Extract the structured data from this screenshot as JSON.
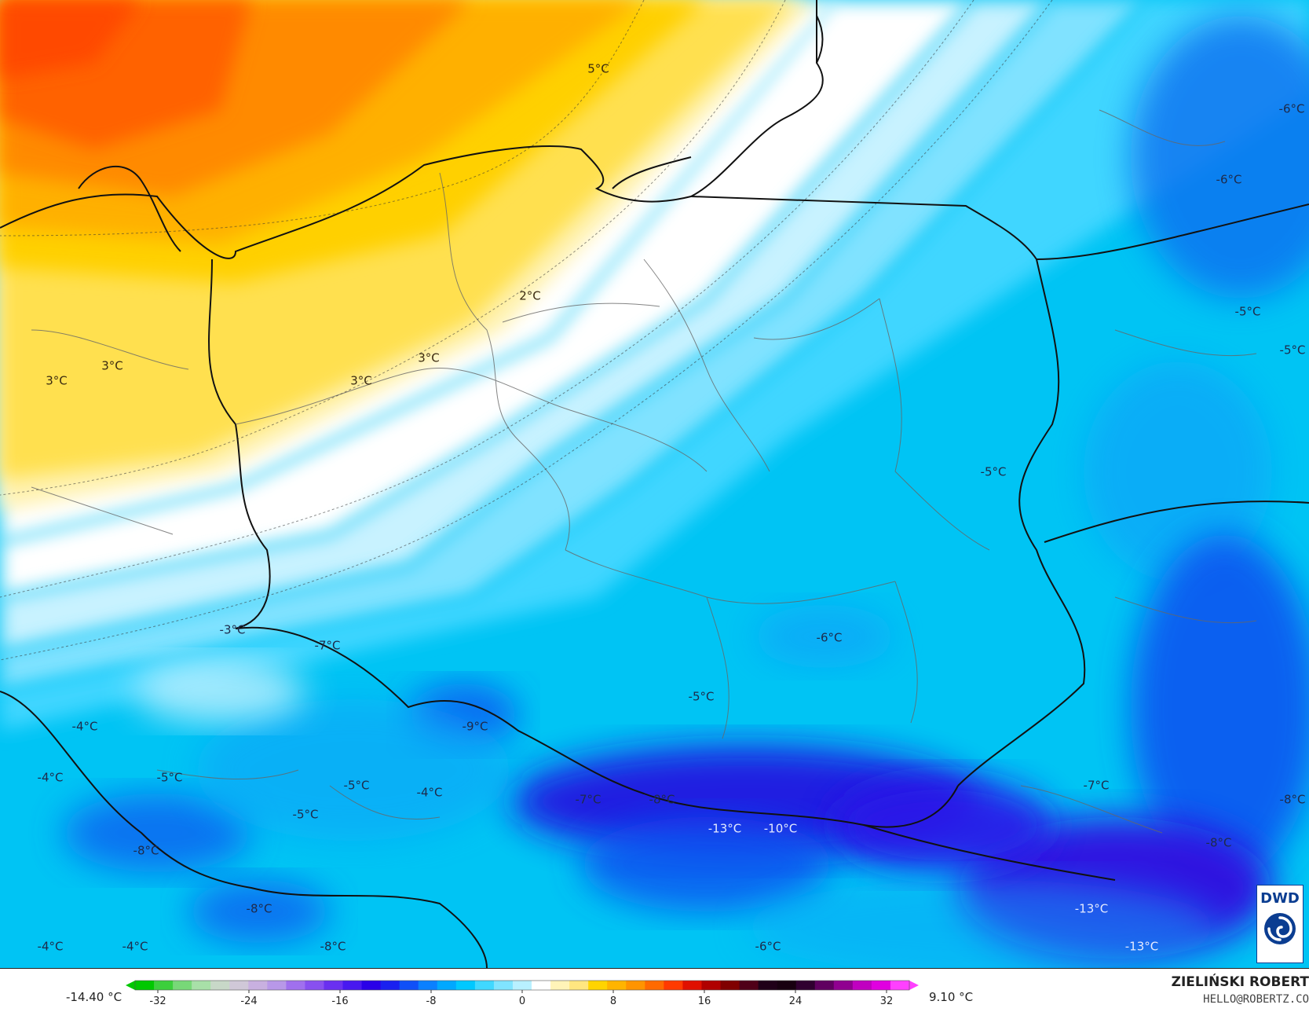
{
  "map": {
    "temperature_labels": [
      {
        "text": "5°C",
        "lon_lat_hint": "baltic-north",
        "tone": "warm"
      },
      {
        "text": "2°C",
        "tone": "warm"
      },
      {
        "text": "3°C",
        "tone": "warm"
      },
      {
        "text": "3°C",
        "tone": "warm"
      },
      {
        "text": "3°C",
        "tone": "warm"
      },
      {
        "text": "3°C",
        "tone": "warm"
      },
      {
        "text": "-6°C",
        "tone": "cool"
      },
      {
        "text": "-6°C",
        "tone": "cool"
      },
      {
        "text": "-5°C",
        "tone": "cool"
      },
      {
        "text": "-5°C",
        "tone": "cool"
      },
      {
        "text": "-5°C",
        "tone": "cool"
      },
      {
        "text": "-6°C",
        "tone": "cool"
      },
      {
        "text": "-3°C",
        "tone": "cool"
      },
      {
        "text": "-7°C",
        "tone": "cool"
      },
      {
        "text": "-5°C",
        "tone": "cool"
      },
      {
        "text": "-4°C",
        "tone": "cool"
      },
      {
        "text": "-9°C",
        "tone": "cool"
      },
      {
        "text": "-4°C",
        "tone": "cool"
      },
      {
        "text": "-5°C",
        "tone": "cool"
      },
      {
        "text": "-5°C",
        "tone": "cool"
      },
      {
        "text": "-4°C",
        "tone": "cool"
      },
      {
        "text": "-5°C",
        "tone": "cool"
      },
      {
        "text": "-7°C",
        "tone": "cool"
      },
      {
        "text": "-8°C",
        "tone": "cool"
      },
      {
        "text": "-13°C",
        "tone": "cold"
      },
      {
        "text": "-10°C",
        "tone": "cold"
      },
      {
        "text": "-7°C",
        "tone": "cool"
      },
      {
        "text": "-8°C",
        "tone": "cool"
      },
      {
        "text": "-8°C",
        "tone": "cool"
      },
      {
        "text": "-8°C",
        "tone": "cool"
      },
      {
        "text": "-8°C",
        "tone": "cool"
      },
      {
        "text": "-4°C",
        "tone": "cool"
      },
      {
        "text": "-4°C",
        "tone": "cool"
      },
      {
        "text": "-8°C",
        "tone": "cool"
      },
      {
        "text": "-6°C",
        "tone": "cool"
      },
      {
        "text": "-13°C",
        "tone": "cold"
      },
      {
        "text": "-13°C",
        "tone": "cold"
      }
    ]
  },
  "legend": {
    "min_value": "-14.40 °C",
    "max_value": "9.10 °C",
    "ticks": [
      "-32",
      "-24",
      "-16",
      "-8",
      "0",
      "8",
      "16",
      "24",
      "32"
    ],
    "tick_values": [
      -32,
      -24,
      -16,
      -8,
      0,
      8,
      16,
      24,
      32
    ],
    "range": [
      -34,
      34
    ],
    "colors": [
      "#00c800",
      "#3ccf3c",
      "#78d878",
      "#a8e0a8",
      "#c8d8c8",
      "#d0c8d8",
      "#c8b0e0",
      "#b898e8",
      "#a070ee",
      "#8850f0",
      "#6a30f0",
      "#4818f0",
      "#2a00e8",
      "#1a20f0",
      "#1050f8",
      "#0a80ff",
      "#00a8ff",
      "#00c8ff",
      "#40d8ff",
      "#80e4ff",
      "#b8f0ff",
      "#ffffff",
      "#fff4b8",
      "#ffe680",
      "#ffd400",
      "#ffb400",
      "#ff9400",
      "#ff6a00",
      "#ff3a00",
      "#e01000",
      "#b00000",
      "#800000",
      "#500018",
      "#200018",
      "#180010",
      "#300030",
      "#600060",
      "#900090",
      "#c000c0",
      "#e000e0",
      "#ff40ff"
    ]
  },
  "credits": {
    "author_name": "ZIELIŃSKI ROBERT",
    "author_email": "HELLO@ROBERTZ.CO",
    "logo_text": "DWD"
  }
}
